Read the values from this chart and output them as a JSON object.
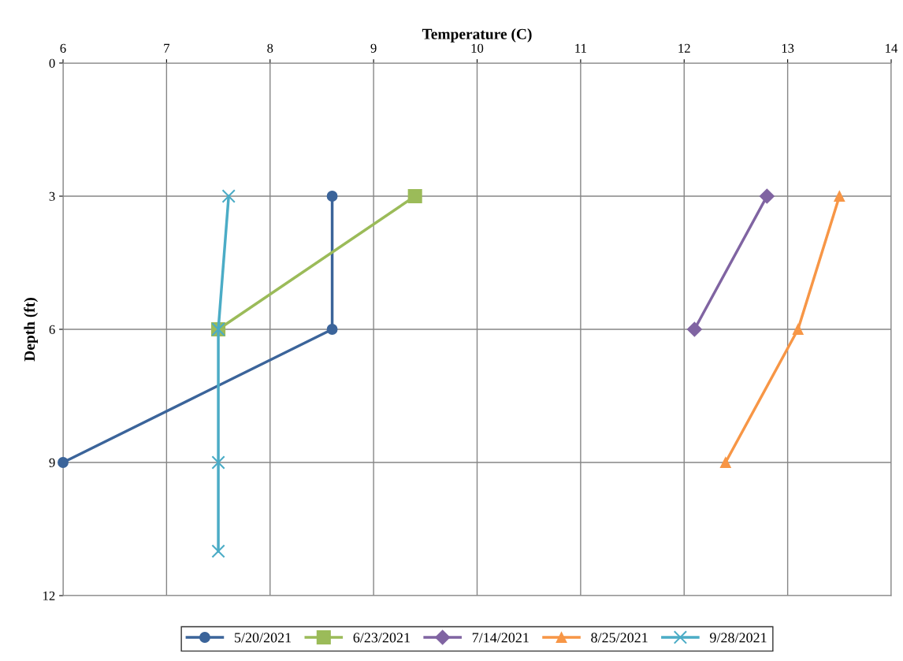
{
  "chart_data": {
    "type": "line",
    "xlabel": "Temperature (C)",
    "ylabel": "Depth (ft)",
    "xlim": [
      6,
      14
    ],
    "xticks": [
      6,
      7,
      8,
      9,
      10,
      11,
      12,
      13,
      14
    ],
    "ylim": [
      12,
      0
    ],
    "yticks": [
      0,
      3,
      6,
      9,
      12
    ],
    "grid": true,
    "legend": "bottom",
    "series": [
      {
        "name": "5/20/2021",
        "color": "#3b649a",
        "marker": "circle",
        "x": [
          8.6,
          8.6,
          6.0
        ],
        "values": [
          3,
          6,
          9
        ]
      },
      {
        "name": "6/23/2021",
        "color": "#9bbb59",
        "marker": "square",
        "x": [
          9.4,
          7.5
        ],
        "values": [
          3,
          6
        ]
      },
      {
        "name": "7/14/2021",
        "color": "#8064a2",
        "marker": "diamond",
        "x": [
          12.8,
          12.1
        ],
        "values": [
          3,
          6
        ]
      },
      {
        "name": "8/25/2021",
        "color": "#f79646",
        "marker": "triangle",
        "x": [
          13.5,
          13.1,
          12.4
        ],
        "values": [
          3,
          6,
          9
        ]
      },
      {
        "name": "9/28/2021",
        "color": "#4bacc6",
        "marker": "cross",
        "x": [
          7.6,
          7.5,
          7.5,
          7.5
        ],
        "values": [
          3,
          6,
          9,
          11
        ]
      }
    ]
  }
}
